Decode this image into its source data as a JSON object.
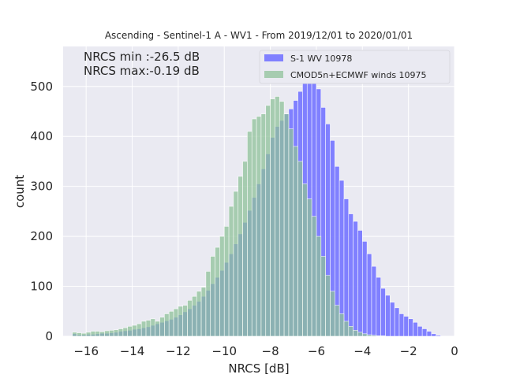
{
  "chart_data": {
    "type": "bar",
    "title": "Ascending - Sentinel-1 A - WV1 - From 2019/12/01 to 2020/01/01",
    "xlabel": "NRCS [dB]",
    "ylabel": "count",
    "xlim": [
      -17,
      0
    ],
    "ylim": [
      0,
      580
    ],
    "x_ticks": [
      -16,
      -14,
      -12,
      -10,
      -8,
      -6,
      -4,
      -2,
      0
    ],
    "y_ticks": [
      0,
      100,
      200,
      300,
      400,
      500
    ],
    "x_tick_labels": [
      "−16",
      "−14",
      "−12",
      "−10",
      "−8",
      "−6",
      "−4",
      "−2",
      "0"
    ],
    "y_tick_labels": [
      "0",
      "100",
      "200",
      "300",
      "400",
      "500"
    ],
    "grid": true,
    "legend_position": "top-right",
    "annotations": [
      "NRCS min :-26.5 dB",
      "NRCS max:-0.19 dB"
    ],
    "bin_edges_start": -16.6,
    "bin_width": 0.2,
    "series": [
      {
        "name": "S-1 WV 10978",
        "color": "#7a7aff",
        "values": [
          5,
          3,
          3,
          4,
          4,
          5,
          6,
          6,
          7,
          8,
          10,
          11,
          12,
          14,
          15,
          17,
          19,
          22,
          25,
          28,
          31,
          34,
          38,
          43,
          49,
          55,
          62,
          70,
          80,
          92,
          105,
          118,
          132,
          148,
          165,
          185,
          205,
          228,
          252,
          278,
          305,
          335,
          365,
          398,
          420,
          432,
          445,
          455,
          472,
          490,
          515,
          548,
          530,
          495,
          458,
          425,
          392,
          340,
          312,
          275,
          245,
          230,
          212,
          190,
          165,
          140,
          118,
          96,
          82,
          68,
          57,
          45,
          40,
          35,
          28,
          20,
          15,
          10,
          5,
          2
        ]
      },
      {
        "name": "CMOD5n+ECMWF winds 10975",
        "color": "#8fc29a",
        "values": [
          8,
          7,
          6,
          8,
          10,
          10,
          9,
          11,
          12,
          13,
          15,
          17,
          20,
          22,
          25,
          30,
          32,
          35,
          30,
          38,
          45,
          50,
          55,
          60,
          62,
          72,
          80,
          90,
          98,
          130,
          160,
          178,
          200,
          220,
          260,
          290,
          320,
          350,
          410,
          435,
          440,
          445,
          462,
          475,
          480,
          470,
          445,
          415,
          380,
          350,
          305,
          275,
          240,
          200,
          160,
          122,
          90,
          62,
          45,
          30,
          20,
          12,
          8,
          5,
          3,
          2,
          1,
          1,
          0,
          0,
          0,
          0,
          0,
          0,
          0,
          0,
          0,
          0,
          0,
          0
        ]
      }
    ]
  }
}
